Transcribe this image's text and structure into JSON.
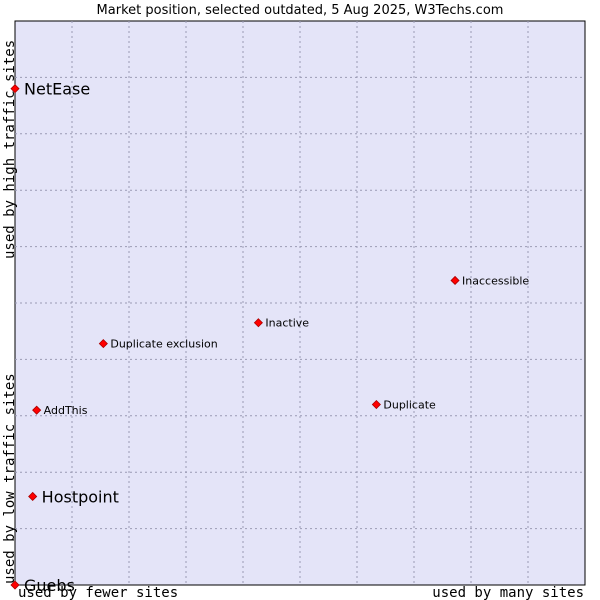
{
  "chart_data": {
    "type": "scatter",
    "title": "Market position, selected outdated, 5 Aug 2025, W3Techs.com",
    "xlabel_left": "used by fewer sites",
    "xlabel_right": "used by many sites",
    "ylabel_low": "used by low traffic sites",
    "ylabel_high": "used by high traffic sites",
    "xlim": [
      0,
      10
    ],
    "ylim": [
      0,
      10
    ],
    "grid": true,
    "background": "#e4e4f8",
    "grid_color": "#9a9ab4",
    "marker_color": "#ff0000",
    "points": [
      {
        "label": "NetEase",
        "x": 0.0,
        "y": 8.8,
        "emphasis": "large"
      },
      {
        "label": "Inaccessible",
        "x": 7.72,
        "y": 5.4,
        "emphasis": "small"
      },
      {
        "label": "Inactive",
        "x": 4.27,
        "y": 4.65,
        "emphasis": "small"
      },
      {
        "label": "Duplicate exclusion",
        "x": 1.55,
        "y": 4.28,
        "emphasis": "small"
      },
      {
        "label": "AddThis",
        "x": 0.38,
        "y": 3.1,
        "emphasis": "small"
      },
      {
        "label": "Duplicate",
        "x": 6.34,
        "y": 3.2,
        "emphasis": "small"
      },
      {
        "label": "Hostpoint",
        "x": 0.31,
        "y": 1.57,
        "emphasis": "large"
      },
      {
        "label": "Guebs",
        "x": 0.0,
        "y": 0.0,
        "emphasis": "large"
      }
    ]
  }
}
